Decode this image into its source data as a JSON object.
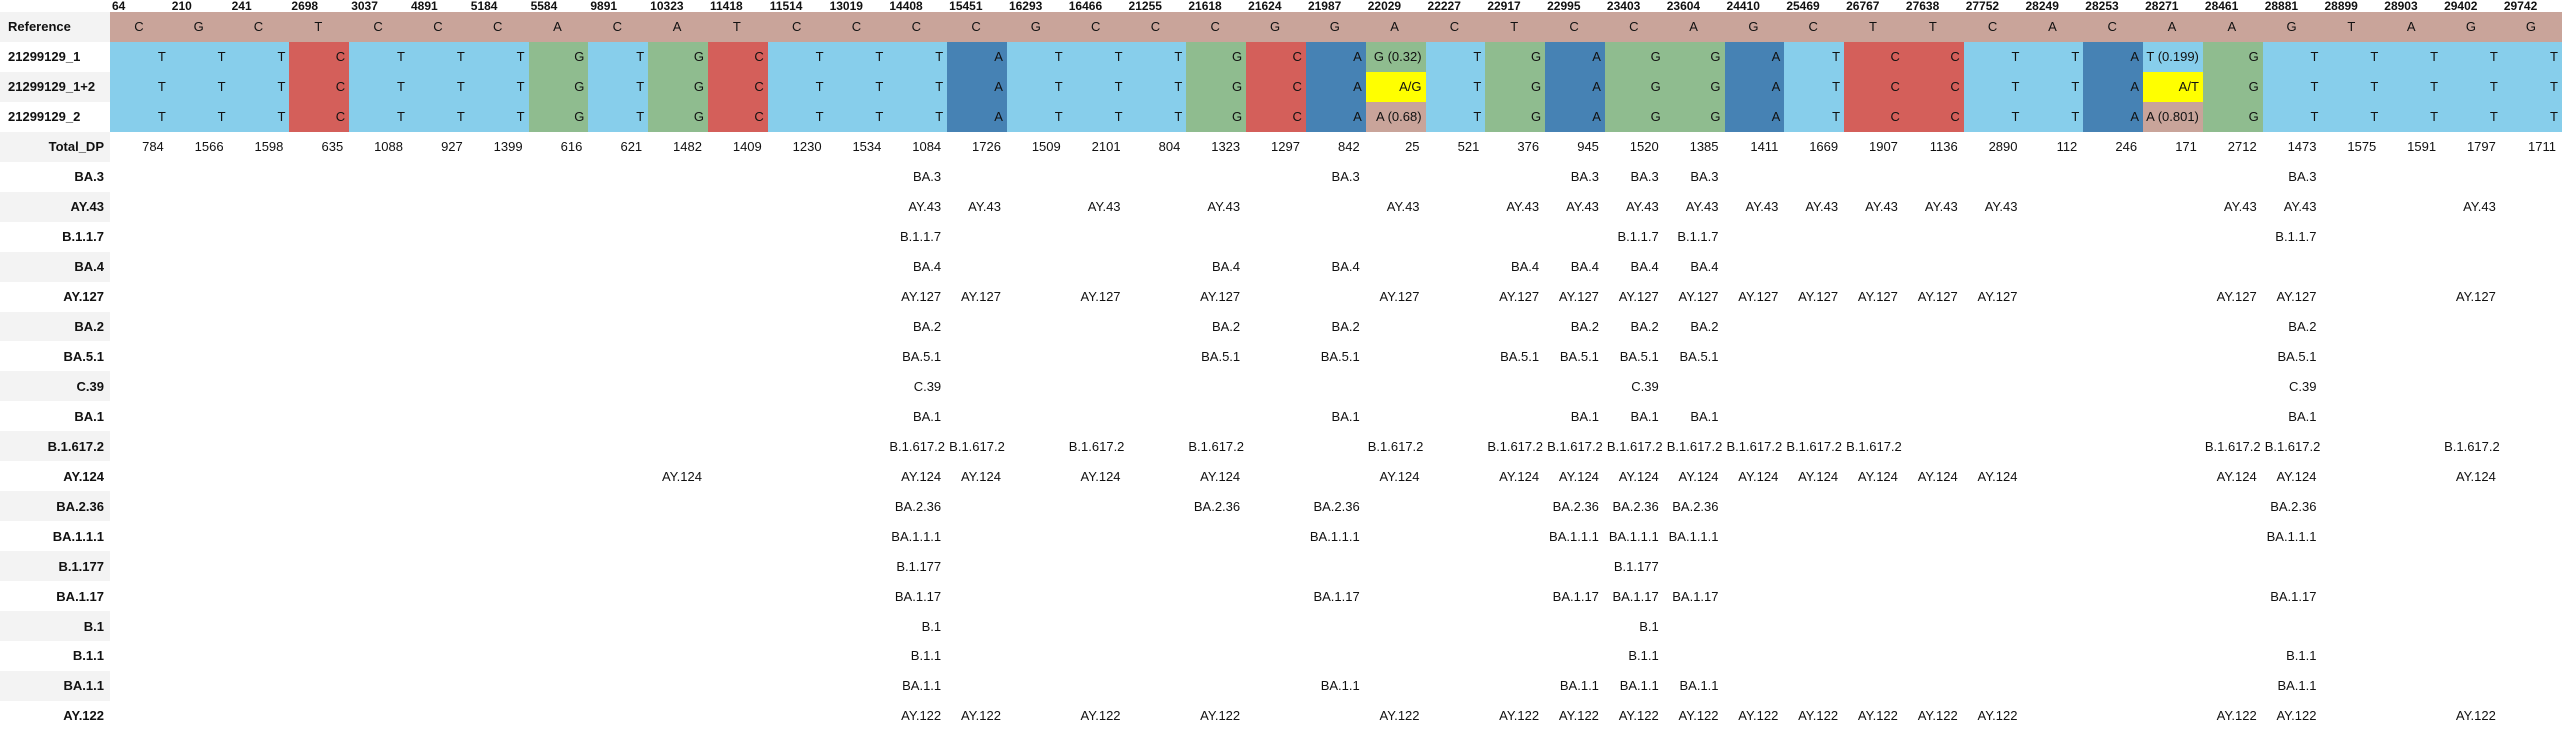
{
  "positions": [
    "64",
    "210",
    "241",
    "2698",
    "3037",
    "4891",
    "5184",
    "5584",
    "9891",
    "10323",
    "11418",
    "11514",
    "13019",
    "14408",
    "15451",
    "16293",
    "16466",
    "21255",
    "21618",
    "21624",
    "21987",
    "22029",
    "22227",
    "22917",
    "22995",
    "23403",
    "23604",
    "24410",
    "25469",
    "26767",
    "27638",
    "27752",
    "28249",
    "28253",
    "28271",
    "28461",
    "28881",
    "28899",
    "28903",
    "29402",
    "29742"
  ],
  "reference": {
    "label": "Reference",
    "bases": [
      "C",
      "G",
      "C",
      "T",
      "C",
      "C",
      "C",
      "A",
      "C",
      "A",
      "T",
      "C",
      "C",
      "C",
      "C",
      "G",
      "C",
      "C",
      "C",
      "G",
      "G",
      "A",
      "C",
      "T",
      "C",
      "C",
      "A",
      "G",
      "C",
      "T",
      "T",
      "C",
      "A",
      "C",
      "A",
      "A",
      "G",
      "T",
      "A",
      "G",
      "G"
    ]
  },
  "samples": [
    {
      "label": "21299129_1",
      "bases": [
        "T",
        "T",
        "T",
        "C",
        "T",
        "T",
        "T",
        "G",
        "T",
        "G",
        "C",
        "T",
        "T",
        "T",
        "A",
        "T",
        "T",
        "T",
        "G",
        "C",
        "A",
        "G (0.32)",
        "T",
        "G",
        "A",
        "G",
        "G",
        "A",
        "T",
        "C",
        "C",
        "T",
        "T",
        "A",
        "T (0.199)",
        "G",
        "T",
        "T",
        "T",
        "T",
        "T"
      ],
      "styles": [
        "T",
        "T",
        "T",
        "C",
        "T",
        "T",
        "T",
        "G",
        "T",
        "G",
        "C",
        "T",
        "T",
        "T",
        "A",
        "T",
        "T",
        "T",
        "G",
        "C",
        "A",
        "M",
        "T",
        "G",
        "A",
        "G",
        "G",
        "A",
        "T",
        "C",
        "C",
        "T",
        "T",
        "A",
        "TT",
        "G",
        "T",
        "T",
        "T",
        "T",
        "T"
      ]
    },
    {
      "label": "21299129_1+2",
      "bases": [
        "T",
        "T",
        "T",
        "C",
        "T",
        "T",
        "T",
        "G",
        "T",
        "G",
        "C",
        "T",
        "T",
        "T",
        "A",
        "T",
        "T",
        "T",
        "G",
        "C",
        "A",
        "A/G",
        "T",
        "G",
        "A",
        "G",
        "G",
        "A",
        "T",
        "C",
        "C",
        "T",
        "T",
        "A",
        "A/T",
        "G",
        "T",
        "T",
        "T",
        "T",
        "T"
      ],
      "styles": [
        "T",
        "T",
        "T",
        "C",
        "T",
        "T",
        "T",
        "G",
        "T",
        "G",
        "C",
        "T",
        "T",
        "T",
        "A",
        "T",
        "T",
        "T",
        "G",
        "C",
        "A",
        "Y",
        "T",
        "G",
        "A",
        "G",
        "G",
        "A",
        "T",
        "C",
        "C",
        "T",
        "T",
        "A",
        "Y",
        "G",
        "T",
        "T",
        "T",
        "T",
        "T"
      ]
    },
    {
      "label": "21299129_2",
      "bases": [
        "T",
        "T",
        "T",
        "C",
        "T",
        "T",
        "T",
        "G",
        "T",
        "G",
        "C",
        "T",
        "T",
        "T",
        "A",
        "T",
        "T",
        "T",
        "G",
        "C",
        "A",
        "A (0.68)",
        "T",
        "G",
        "A",
        "G",
        "G",
        "A",
        "T",
        "C",
        "C",
        "T",
        "T",
        "A",
        "A (0.801)",
        "G",
        "T",
        "T",
        "T",
        "T",
        "T"
      ],
      "styles": [
        "T",
        "T",
        "T",
        "C",
        "T",
        "T",
        "T",
        "G",
        "T",
        "G",
        "C",
        "T",
        "T",
        "T",
        "A",
        "T",
        "T",
        "T",
        "G",
        "C",
        "A",
        "R",
        "T",
        "G",
        "A",
        "G",
        "G",
        "A",
        "T",
        "C",
        "C",
        "T",
        "T",
        "A",
        "R",
        "G",
        "T",
        "T",
        "T",
        "T",
        "T"
      ]
    }
  ],
  "total_dp": {
    "label": "Total_DP",
    "values": [
      "784",
      "1566",
      "1598",
      "635",
      "1088",
      "927",
      "1399",
      "616",
      "621",
      "1482",
      "1409",
      "1230",
      "1534",
      "1084",
      "1726",
      "1509",
      "2101",
      "804",
      "1323",
      "1297",
      "842",
      "25",
      "521",
      "376",
      "945",
      "1520",
      "1385",
      "1411",
      "1669",
      "1907",
      "1136",
      "2890",
      "112",
      "246",
      "171",
      "2712",
      "1473",
      "1575",
      "1591",
      "1797",
      "1711"
    ]
  },
  "lineages": [
    {
      "label": "BA.3",
      "cells": {
        "14408": "BA.3",
        "21987": "BA.3",
        "22995": "BA.3",
        "23403": "BA.3",
        "23604": "BA.3",
        "28881": "BA.3"
      }
    },
    {
      "label": "AY.43",
      "cells": {
        "14408": "AY.43",
        "15451": "AY.43",
        "16466": "AY.43",
        "21618": "AY.43",
        "22029": "AY.43",
        "22917": "AY.43",
        "22995": "AY.43",
        "23403": "AY.43",
        "23604": "AY.43",
        "24410": "AY.43",
        "25469": "AY.43",
        "26767": "AY.43",
        "27638": "AY.43",
        "27752": "AY.43",
        "28461": "AY.43",
        "28881": "AY.43",
        "29402": "AY.43"
      }
    },
    {
      "label": "B.1.1.7",
      "cells": {
        "14408": "B.1.1.7",
        "23403": "B.1.1.7",
        "23604": "B.1.1.7",
        "28881": "B.1.1.7"
      }
    },
    {
      "label": "BA.4",
      "cells": {
        "14408": "BA.4",
        "21618": "BA.4",
        "21987": "BA.4",
        "22917": "BA.4",
        "22995": "BA.4",
        "23403": "BA.4",
        "23604": "BA.4"
      }
    },
    {
      "label": "AY.127",
      "cells": {
        "14408": "AY.127",
        "15451": "AY.127",
        "16466": "AY.127",
        "21618": "AY.127",
        "22029": "AY.127",
        "22917": "AY.127",
        "22995": "AY.127",
        "23403": "AY.127",
        "23604": "AY.127",
        "24410": "AY.127",
        "25469": "AY.127",
        "26767": "AY.127",
        "27638": "AY.127",
        "27752": "AY.127",
        "28461": "AY.127",
        "28881": "AY.127",
        "29402": "AY.127"
      }
    },
    {
      "label": "BA.2",
      "cells": {
        "14408": "BA.2",
        "21618": "BA.2",
        "21987": "BA.2",
        "22995": "BA.2",
        "23403": "BA.2",
        "23604": "BA.2",
        "28881": "BA.2"
      }
    },
    {
      "label": "BA.5.1",
      "cells": {
        "14408": "BA.5.1",
        "21618": "BA.5.1",
        "21987": "BA.5.1",
        "22917": "BA.5.1",
        "22995": "BA.5.1",
        "23403": "BA.5.1",
        "23604": "BA.5.1",
        "28881": "BA.5.1"
      }
    },
    {
      "label": "C.39",
      "cells": {
        "14408": "C.39",
        "23403": "C.39",
        "28881": "C.39"
      }
    },
    {
      "label": "BA.1",
      "cells": {
        "14408": "BA.1",
        "21987": "BA.1",
        "22995": "BA.1",
        "23403": "BA.1",
        "23604": "BA.1",
        "28881": "BA.1"
      }
    },
    {
      "label": "B.1.617.2",
      "cells": {
        "14408": "B.1.617.2",
        "15451": "B.1.617.2",
        "16466": "B.1.617.2",
        "21618": "B.1.617.2",
        "22029": "B.1.617.2",
        "22917": "B.1.617.2",
        "22995": "B.1.617.2",
        "23403": "B.1.617.2",
        "23604": "B.1.617.2",
        "24410": "B.1.617.2",
        "25469": "B.1.617.2",
        "26767": "B.1.617.2",
        "28461": "B.1.617.2",
        "28881": "B.1.617.2",
        "29402": "B.1.617.2"
      }
    },
    {
      "label": "AY.124",
      "cells": {
        "10323": "AY.124",
        "14408": "AY.124",
        "15451": "AY.124",
        "16466": "AY.124",
        "21618": "AY.124",
        "22029": "AY.124",
        "22917": "AY.124",
        "22995": "AY.124",
        "23403": "AY.124",
        "23604": "AY.124",
        "24410": "AY.124",
        "25469": "AY.124",
        "26767": "AY.124",
        "27638": "AY.124",
        "27752": "AY.124",
        "28461": "AY.124",
        "28881": "AY.124",
        "29402": "AY.124"
      }
    },
    {
      "label": "BA.2.36",
      "cells": {
        "14408": "BA.2.36",
        "21618": "BA.2.36",
        "21987": "BA.2.36",
        "22995": "BA.2.36",
        "23403": "BA.2.36",
        "23604": "BA.2.36",
        "28881": "BA.2.36"
      }
    },
    {
      "label": "BA.1.1.1",
      "cells": {
        "14408": "BA.1.1.1",
        "21987": "BA.1.1.1",
        "22995": "BA.1.1.1",
        "23403": "BA.1.1.1",
        "23604": "BA.1.1.1",
        "28881": "BA.1.1.1"
      }
    },
    {
      "label": "B.1.177",
      "cells": {
        "14408": "B.1.177",
        "23403": "B.1.177"
      }
    },
    {
      "label": "BA.1.17",
      "cells": {
        "14408": "BA.1.17",
        "21987": "BA.1.17",
        "22995": "BA.1.17",
        "23403": "BA.1.17",
        "23604": "BA.1.17",
        "28881": "BA.1.17"
      }
    },
    {
      "label": "B.1",
      "cells": {
        "14408": "B.1",
        "23403": "B.1"
      }
    },
    {
      "label": "B.1.1",
      "cells": {
        "14408": "B.1.1",
        "23403": "B.1.1",
        "28881": "B.1.1"
      }
    },
    {
      "label": "BA.1.1",
      "cells": {
        "14408": "BA.1.1",
        "21987": "BA.1.1",
        "22995": "BA.1.1",
        "23403": "BA.1.1",
        "23604": "BA.1.1",
        "28881": "BA.1.1"
      }
    },
    {
      "label": "AY.122",
      "cells": {
        "14408": "AY.122",
        "15451": "AY.122",
        "16466": "AY.122",
        "21618": "AY.122",
        "22029": "AY.122",
        "22917": "AY.122",
        "22995": "AY.122",
        "23403": "AY.122",
        "23604": "AY.122",
        "24410": "AY.122",
        "25469": "AY.122",
        "26767": "AY.122",
        "27638": "AY.122",
        "27752": "AY.122",
        "28461": "AY.122",
        "28881": "AY.122",
        "29402": "AY.122"
      }
    }
  ]
}
